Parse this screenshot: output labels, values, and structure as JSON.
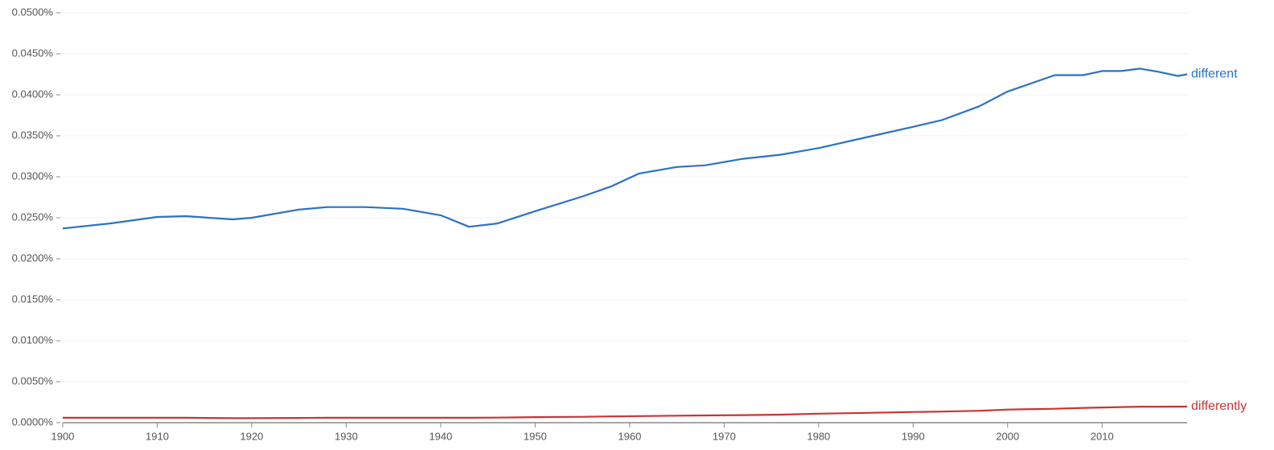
{
  "chart_data": {
    "type": "line",
    "x": [
      1900,
      1905,
      1910,
      1913,
      1918,
      1920,
      1925,
      1928,
      1932,
      1936,
      1940,
      1943,
      1946,
      1950,
      1955,
      1958,
      1961,
      1965,
      1968,
      1972,
      1976,
      1980,
      1985,
      1990,
      1993,
      1997,
      2000,
      2005,
      2008,
      2010,
      2012,
      2014,
      2016,
      2018,
      2019
    ],
    "series": [
      {
        "name": "different",
        "color": "#2b72c4",
        "values": [
          0.0237,
          0.0243,
          0.0251,
          0.0252,
          0.0248,
          0.025,
          0.026,
          0.0263,
          0.0263,
          0.0261,
          0.0253,
          0.0239,
          0.0243,
          0.0258,
          0.0276,
          0.0288,
          0.0304,
          0.0312,
          0.0314,
          0.0322,
          0.0327,
          0.0335,
          0.0348,
          0.0361,
          0.0369,
          0.0386,
          0.0404,
          0.0424,
          0.0424,
          0.0429,
          0.0429,
          0.0432,
          0.0428,
          0.0423,
          0.0425
        ]
      },
      {
        "name": "differently",
        "color": "#cc3333",
        "values": [
          0.0006,
          0.0006,
          0.0006,
          0.0006,
          0.00055,
          0.00055,
          0.00058,
          0.0006,
          0.0006,
          0.0006,
          0.0006,
          0.0006,
          0.00062,
          0.00068,
          0.00072,
          0.00076,
          0.0008,
          0.00085,
          0.00088,
          0.00092,
          0.00098,
          0.0011,
          0.0012,
          0.0013,
          0.00135,
          0.00145,
          0.0016,
          0.0017,
          0.0018,
          0.00185,
          0.0019,
          0.00195,
          0.00195,
          0.00196,
          0.00196
        ]
      }
    ],
    "xlim": [
      1900,
      2019
    ],
    "xticks": [
      1900,
      1910,
      1920,
      1930,
      1940,
      1950,
      1960,
      1970,
      1980,
      1990,
      2000,
      2010
    ],
    "ylim": [
      0,
      0.05
    ],
    "yticks": [
      {
        "value": 0,
        "label": "0.0000%"
      },
      {
        "value": 0.005,
        "label": "0.0050%"
      },
      {
        "value": 0.01,
        "label": "0.0100%"
      },
      {
        "value": 0.015,
        "label": "0.0150%"
      },
      {
        "value": 0.02,
        "label": "0.0200%"
      },
      {
        "value": 0.025,
        "label": "0.0250%"
      },
      {
        "value": 0.03,
        "label": "0.0300%"
      },
      {
        "value": 0.035,
        "label": "0.0350%"
      },
      {
        "value": 0.04,
        "label": "0.0400%"
      },
      {
        "value": 0.045,
        "label": "0.0450%"
      },
      {
        "value": 0.05,
        "label": "0.0500%"
      }
    ],
    "grid": true
  }
}
